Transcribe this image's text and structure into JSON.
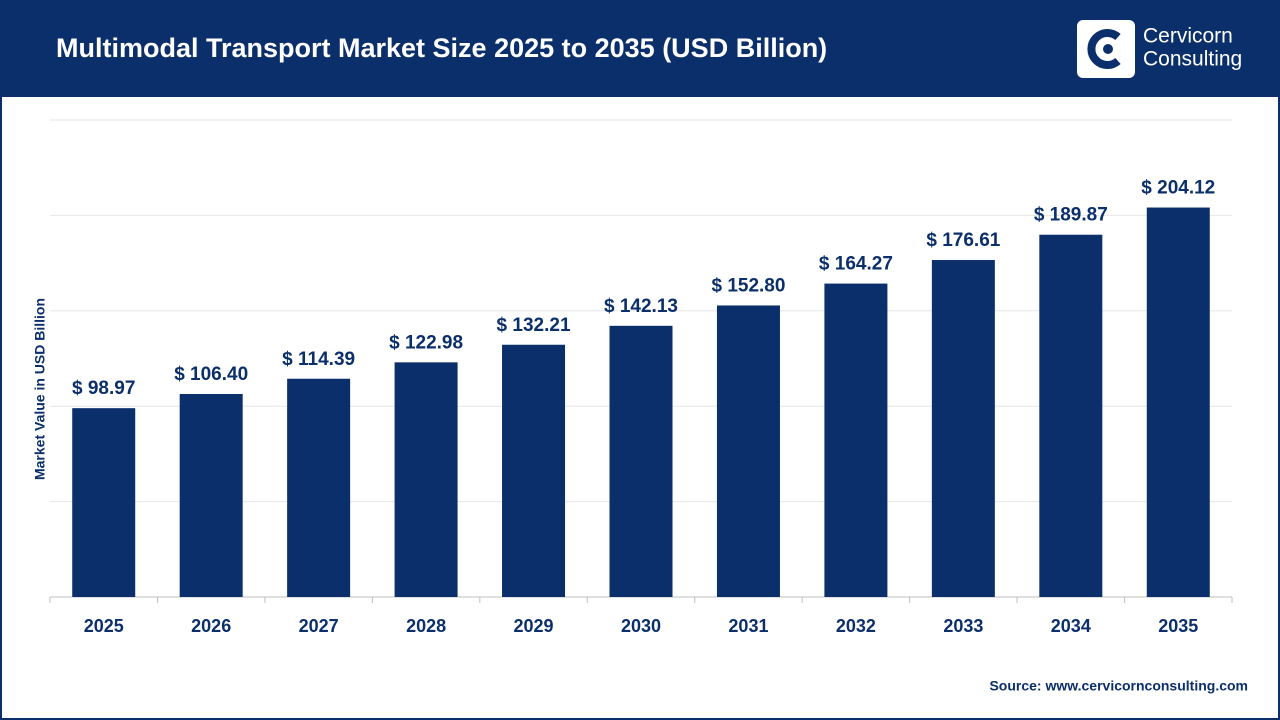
{
  "chart_data": {
    "type": "bar",
    "title": "Multimodal Transport Market Size 2025 to 2035 (USD Billion)",
    "y_label": "Market Value in USD Billion",
    "categories": [
      "2025",
      "2026",
      "2027",
      "2028",
      "2029",
      "2030",
      "2031",
      "2032",
      "2033",
      "2034",
      "2035"
    ],
    "values": [
      98.97,
      106.4,
      114.39,
      122.98,
      132.21,
      142.13,
      152.8,
      164.27,
      176.61,
      189.87,
      204.12
    ],
    "value_labels": [
      "$ 98.97",
      "$ 106.40",
      "$ 114.39",
      "$ 122.98",
      "$ 132.21",
      "$ 142.13",
      "$ 152.80",
      "$ 164.27",
      "$ 176.61",
      "$ 189.87",
      "$ 204.12"
    ],
    "color": "#0b2f6a",
    "ylim": [
      0,
      250
    ],
    "yticks": [
      0,
      50,
      100,
      150,
      200,
      250
    ],
    "grid": true,
    "source": "Source: www.cervicornconsulting.com"
  },
  "logo": {
    "line1": "Cervicorn",
    "line2": "Consulting"
  }
}
